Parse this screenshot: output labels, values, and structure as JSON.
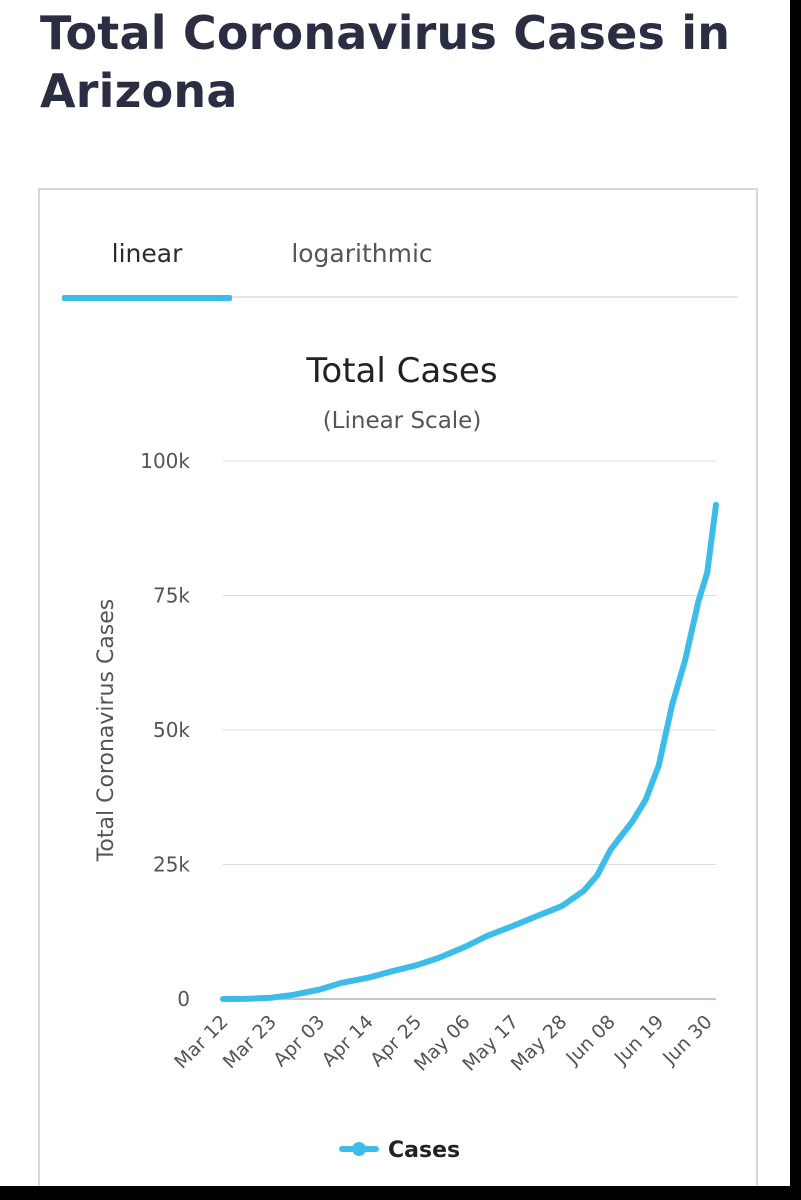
{
  "page": {
    "title": "Total Coronavirus Cases in Arizona"
  },
  "tabs": [
    {
      "label": "linear",
      "active": true
    },
    {
      "label": "logarithmic",
      "active": false
    }
  ],
  "colors": {
    "accent": "#3cbde9",
    "title_text": "#2b2d42",
    "grid": "#d9dde3"
  },
  "chart_data": {
    "type": "line",
    "title": "Total Cases",
    "subtitle": "(Linear Scale)",
    "ylabel": "Total Coronavirus Cases",
    "xlabel": "",
    "ylim": [
      0,
      100000
    ],
    "yticks": [
      0,
      25000,
      50000,
      75000,
      100000
    ],
    "ytick_labels": [
      "0",
      "25k",
      "50k",
      "75k",
      "100k"
    ],
    "xtick_labels": [
      "Mar 12",
      "Mar 23",
      "Apr 03",
      "Apr 14",
      "Apr 25",
      "May 06",
      "May 17",
      "May 28",
      "Jun 08",
      "Jun 19",
      "Jun 30"
    ],
    "grid": true,
    "legend": {
      "position": "bottom"
    },
    "series": [
      {
        "name": "Cases",
        "color": "#3cbde9",
        "x": [
          "Mar 12",
          "Mar 17",
          "Mar 23",
          "Mar 28",
          "Apr 03",
          "Apr 08",
          "Apr 14",
          "Apr 19",
          "Apr 25",
          "Apr 30",
          "May 06",
          "May 11",
          "May 17",
          "May 22",
          "May 28",
          "Jun 02",
          "Jun 05",
          "Jun 08",
          "Jun 10",
          "Jun 13",
          "Jun 16",
          "Jun 19",
          "Jun 22",
          "Jun 25",
          "Jun 28",
          "Jun 30",
          "Jul 02"
        ],
        "values": [
          9,
          18,
          235,
          773,
          1769,
          3018,
          3962,
          5068,
          6280,
          7648,
          9707,
          11736,
          13631,
          15315,
          17262,
          20129,
          23000,
          27678,
          29852,
          33000,
          37000,
          43443,
          54586,
          63030,
          73908,
          79215,
          91858
        ]
      }
    ]
  }
}
